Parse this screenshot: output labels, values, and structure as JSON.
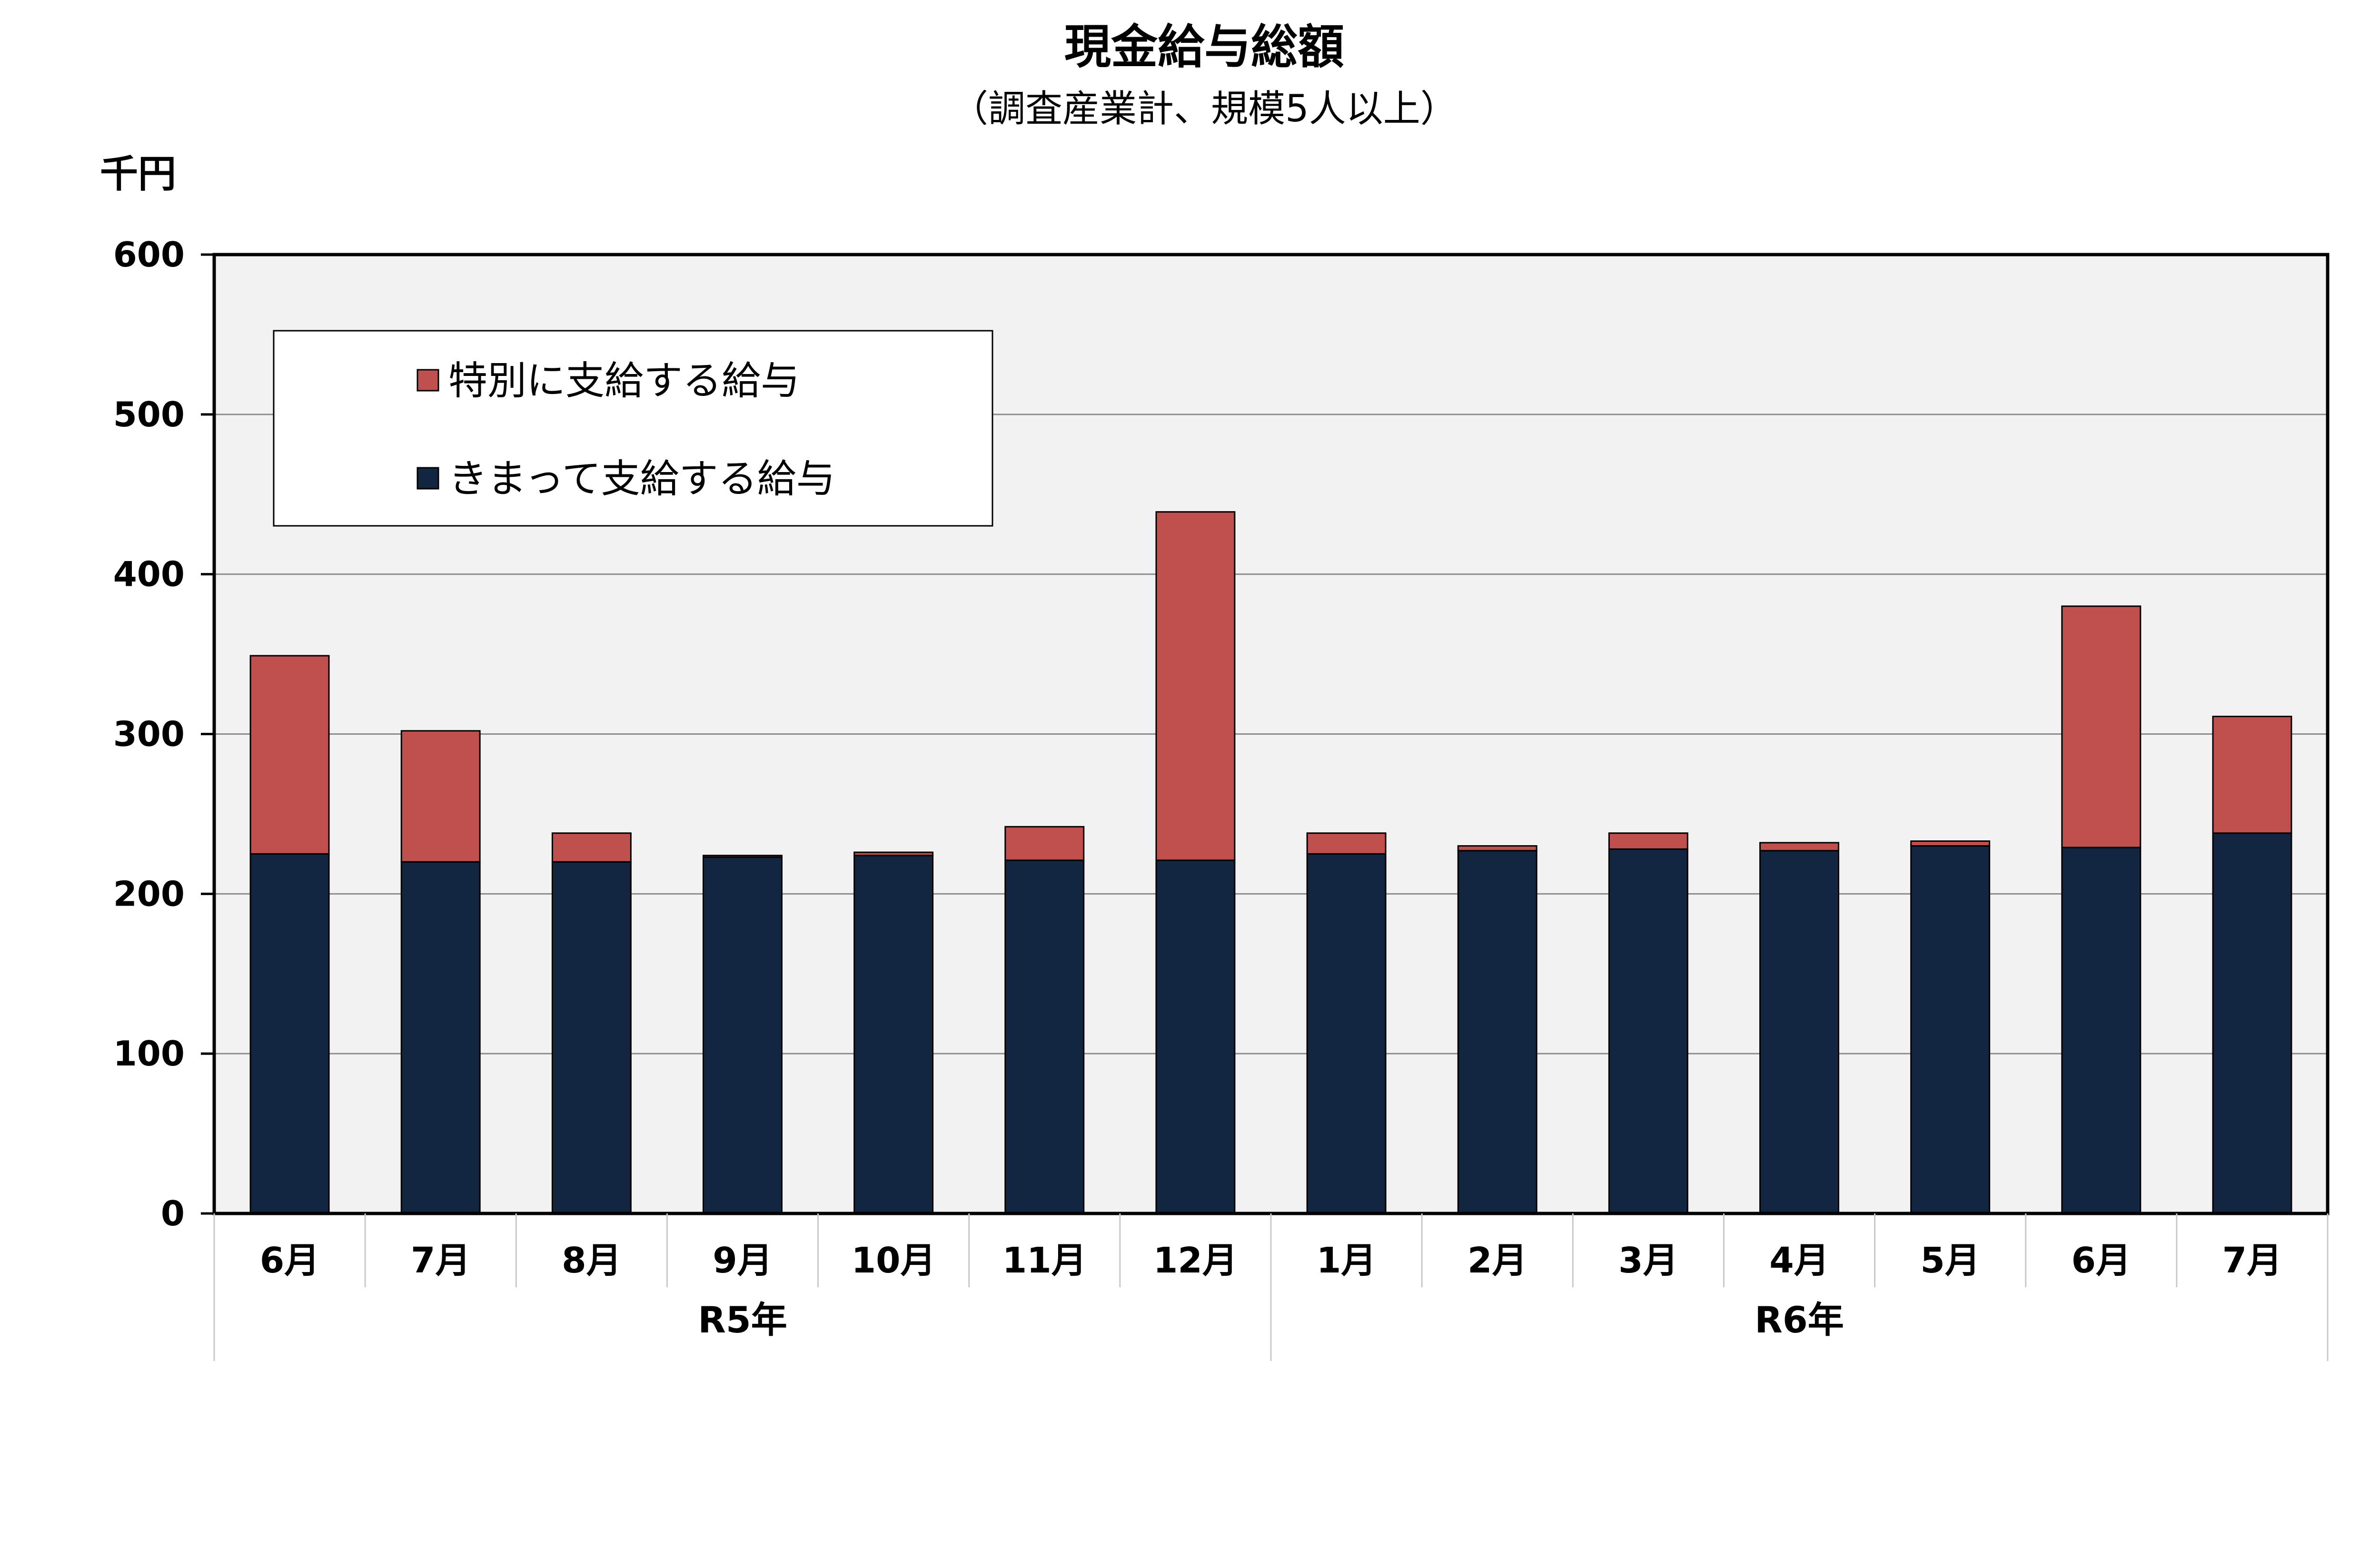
{
  "chart_data": {
    "type": "bar",
    "stacked": true,
    "title": "現金給与総額",
    "subtitle": "（調査産業計、規模5人以上）",
    "ylabel": "千円",
    "ylim": [
      0,
      600
    ],
    "yticks": [
      0,
      100,
      200,
      300,
      400,
      500,
      600
    ],
    "grid": true,
    "legend_position": "top-left",
    "categories": [
      "6月",
      "7月",
      "8月",
      "9月",
      "10月",
      "11月",
      "12月",
      "1月",
      "2月",
      "3月",
      "4月",
      "5月",
      "6月",
      "7月"
    ],
    "groups": [
      {
        "label": "R5年",
        "count": 7
      },
      {
        "label": "R6年",
        "count": 7
      }
    ],
    "series": [
      {
        "name": "きまって支給する給与",
        "color": "#132641",
        "values": [
          225,
          220,
          220,
          223,
          224,
          221,
          221,
          225,
          227,
          228,
          227,
          230,
          229,
          238
        ]
      },
      {
        "name": "特別に支給する給与",
        "color": "#c0504d",
        "values": [
          124,
          82,
          18,
          1,
          2,
          21,
          218,
          13,
          3,
          10,
          5,
          3,
          151,
          73
        ]
      }
    ],
    "legend_order": [
      1,
      0
    ],
    "plot_background": "#f2f2f2"
  }
}
